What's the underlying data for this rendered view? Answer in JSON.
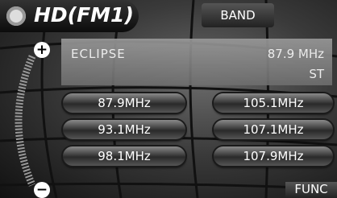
{
  "header": {
    "title": "HD(FM1)",
    "band_button": "BAND"
  },
  "station": {
    "name": "ECLIPSE",
    "frequency": "87.9 MHz",
    "mode": "ST"
  },
  "presets": [
    "87.9MHz",
    "105.1MHz",
    "93.1MHz",
    "107.1MHz",
    "98.1MHz",
    "107.9MHz"
  ],
  "footer": {
    "func_button": "FUNC"
  }
}
